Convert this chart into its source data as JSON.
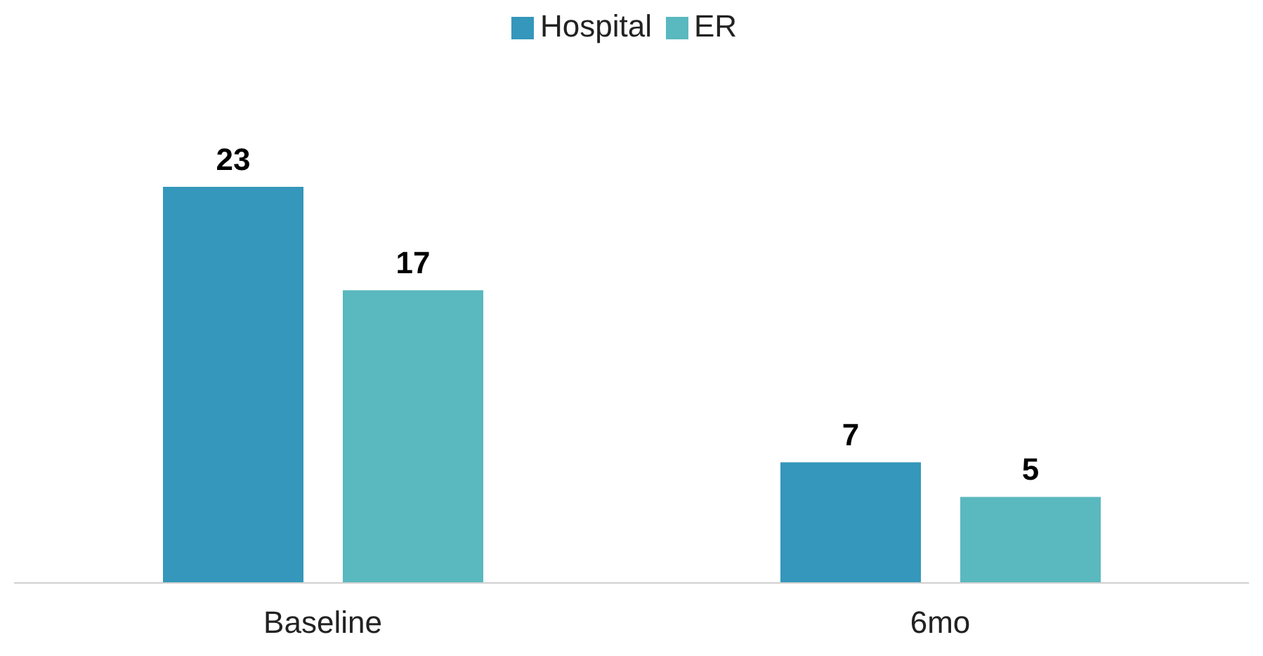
{
  "chart_data": {
    "type": "bar",
    "categories": [
      "Baseline",
      "6mo"
    ],
    "series": [
      {
        "name": "Hospital",
        "color": "#3497bb",
        "values": [
          23,
          7
        ]
      },
      {
        "name": "ER",
        "color": "#5ab8bf",
        "values": [
          17,
          5
        ]
      }
    ],
    "data_labels": true,
    "legend": "top",
    "grid": false
  }
}
